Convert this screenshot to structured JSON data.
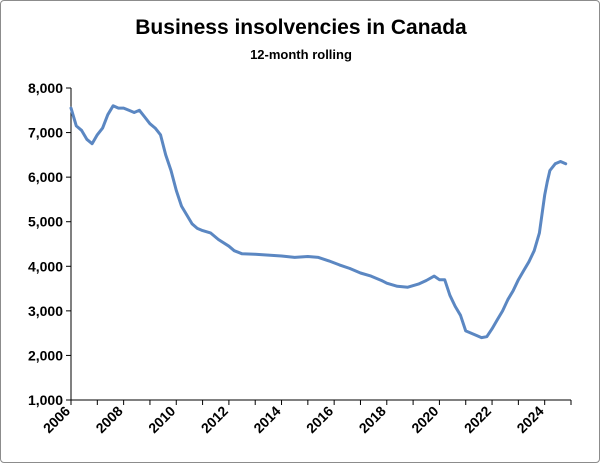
{
  "chart_data": {
    "type": "line",
    "title": "Business insolvencies in Canada",
    "subtitle": "12-month rolling",
    "xlabel": "",
    "ylabel": "",
    "ylim": [
      1000,
      8000
    ],
    "xlim": [
      2006,
      2025
    ],
    "grid": false,
    "y_ticks": [
      "1,000",
      "2,000",
      "3,000",
      "4,000",
      "5,000",
      "6,000",
      "7,000",
      "8,000"
    ],
    "x_ticks": [
      "2006",
      "2008",
      "2010",
      "2012",
      "2014",
      "2016",
      "2018",
      "2020",
      "2022",
      "2024"
    ],
    "line_color": "#5b87c2",
    "series": [
      {
        "x": [
          2006.0,
          2006.2,
          2006.4,
          2006.6,
          2006.8,
          2007.0,
          2007.2,
          2007.4,
          2007.6,
          2007.8,
          2008.0,
          2008.2,
          2008.4,
          2008.6,
          2008.8,
          2009.0,
          2009.2,
          2009.4,
          2009.6,
          2009.8,
          2010.0,
          2010.2,
          2010.4,
          2010.6,
          2010.8,
          2011.0,
          2011.3,
          2011.6,
          2012.0,
          2012.2,
          2012.5,
          2013.0,
          2013.5,
          2014.0,
          2014.5,
          2015.0,
          2015.4,
          2015.8,
          2016.2,
          2016.6,
          2017.0,
          2017.4,
          2017.8,
          2018.0,
          2018.4,
          2018.8,
          2019.2,
          2019.5,
          2019.8,
          2020.0,
          2020.2,
          2020.4,
          2020.6,
          2020.8,
          2021.0,
          2021.2,
          2021.4,
          2021.6,
          2021.8,
          2022.0,
          2022.2,
          2022.4,
          2022.6,
          2022.8,
          2023.0,
          2023.2,
          2023.4,
          2023.6,
          2023.8,
          2024.0,
          2024.1,
          2024.2,
          2024.4,
          2024.6,
          2024.8
        ],
        "values": [
          7550,
          7150,
          7050,
          6850,
          6750,
          6950,
          7100,
          7400,
          7600,
          7550,
          7550,
          7500,
          7450,
          7500,
          7350,
          7200,
          7100,
          6950,
          6500,
          6150,
          5700,
          5350,
          5150,
          4950,
          4850,
          4800,
          4750,
          4600,
          4450,
          4350,
          4280,
          4270,
          4250,
          4230,
          4200,
          4220,
          4200,
          4120,
          4030,
          3950,
          3850,
          3780,
          3680,
          3620,
          3550,
          3530,
          3600,
          3680,
          3780,
          3700,
          3700,
          3350,
          3100,
          2900,
          2550,
          2500,
          2450,
          2400,
          2420,
          2600,
          2800,
          3000,
          3250,
          3450,
          3700,
          3900,
          4100,
          4350,
          4750,
          5600,
          5900,
          6150,
          6300,
          6350,
          6300
        ]
      }
    ]
  }
}
